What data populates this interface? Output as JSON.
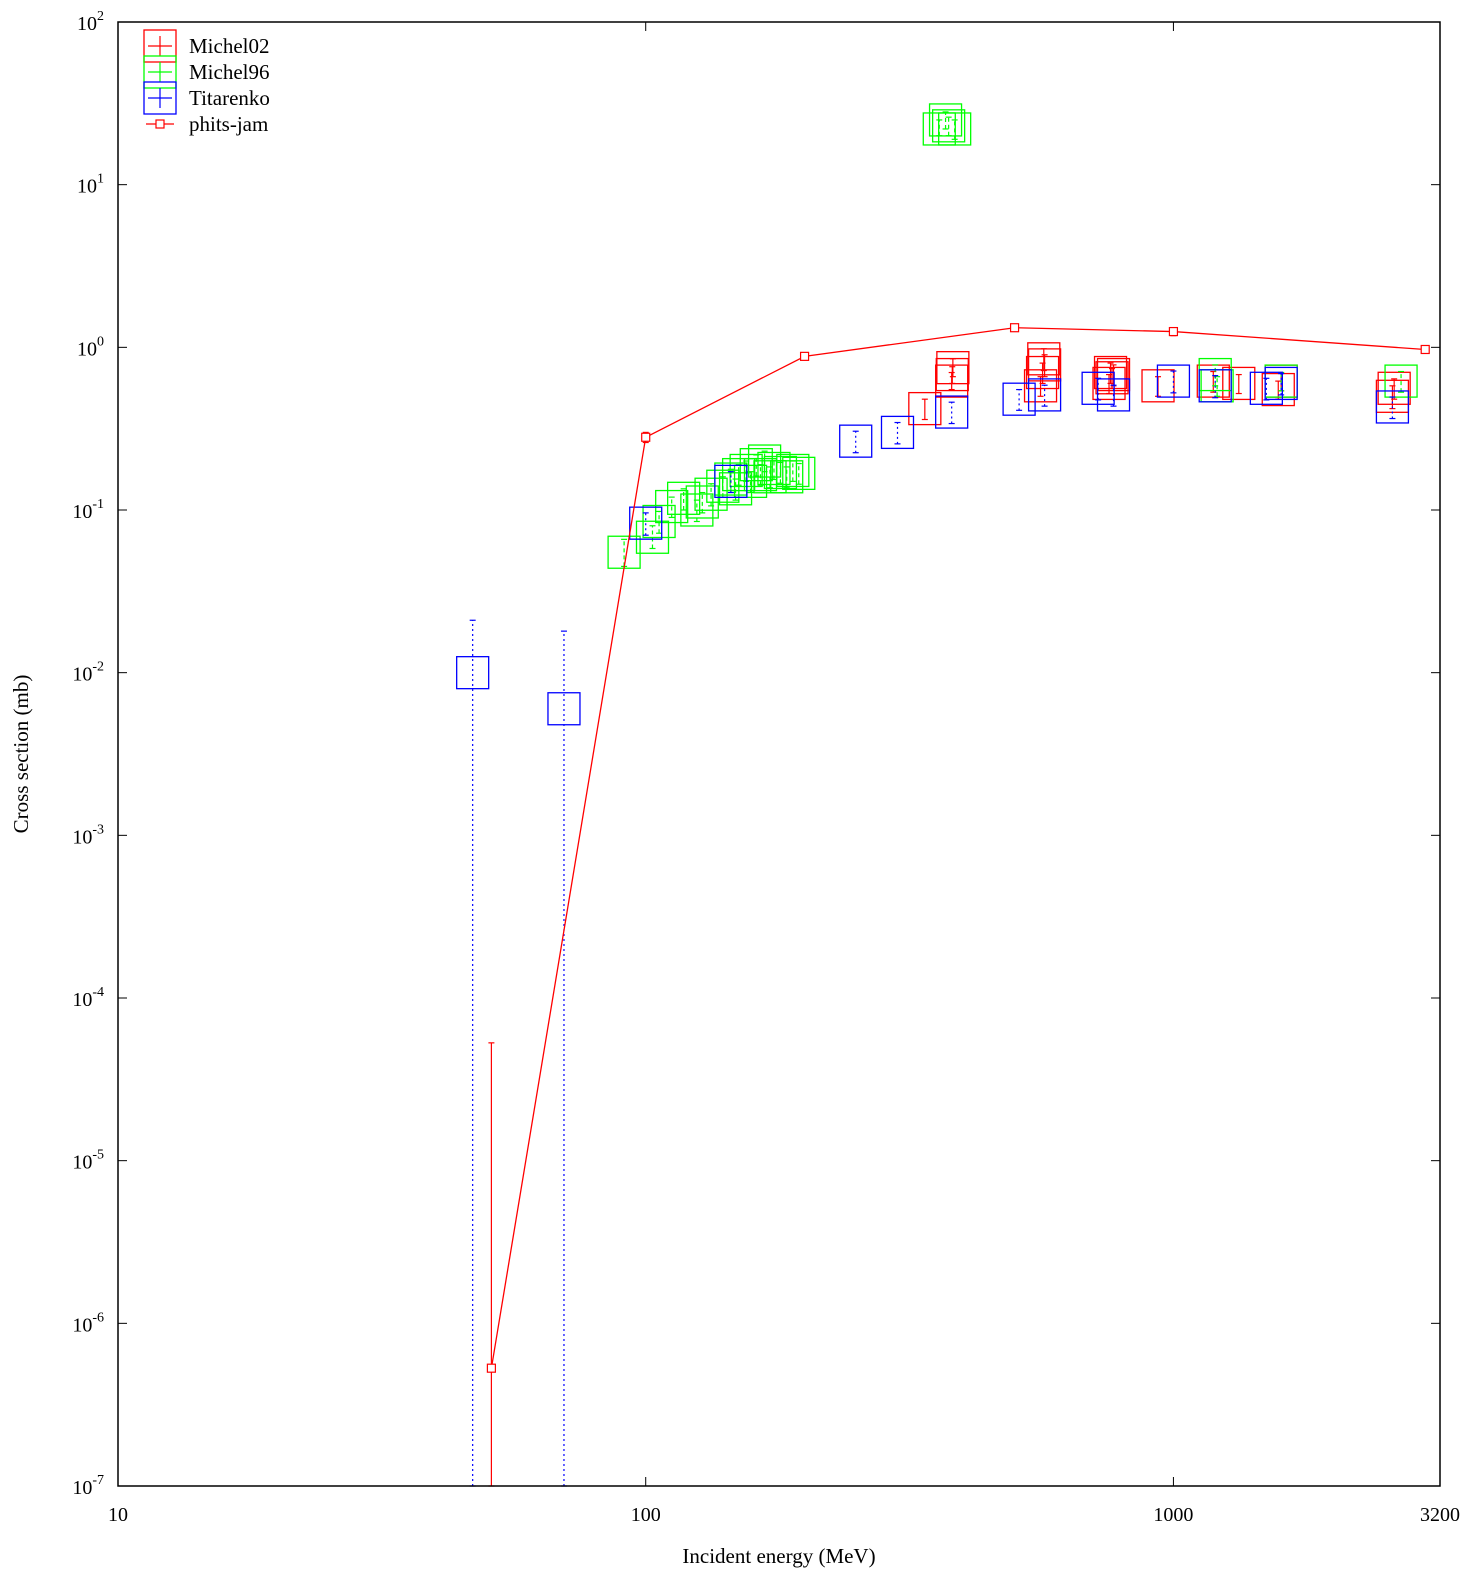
{
  "chart_data": {
    "type": "scatter",
    "title": "",
    "xlabel": "Incident energy (MeV)",
    "ylabel": "Cross section (mb)",
    "x_scale": "log",
    "y_scale": "log",
    "xlim": [
      10,
      3200
    ],
    "ylim": [
      1e-07,
      100
    ],
    "grid": false,
    "legend_position": "top-left",
    "x_ticks": [
      {
        "value": 10,
        "label": "10"
      },
      {
        "value": 100,
        "label": "100"
      },
      {
        "value": 1000,
        "label": "1000"
      },
      {
        "value": 3200,
        "label": "3200"
      }
    ],
    "y_ticks": [
      {
        "value": 1e-07,
        "base": "10",
        "exp": "-7"
      },
      {
        "value": 1e-06,
        "base": "10",
        "exp": "-6"
      },
      {
        "value": 1e-05,
        "base": "10",
        "exp": "-5"
      },
      {
        "value": 0.0001,
        "base": "10",
        "exp": "-4"
      },
      {
        "value": 0.001,
        "base": "10",
        "exp": "-3"
      },
      {
        "value": 0.01,
        "base": "10",
        "exp": "-2"
      },
      {
        "value": 0.1,
        "base": "10",
        "exp": "-1"
      },
      {
        "value": 1,
        "base": "10",
        "exp": "0"
      },
      {
        "value": 10,
        "base": "10",
        "exp": "1"
      },
      {
        "value": 100,
        "base": "10",
        "exp": "2"
      }
    ],
    "series": [
      {
        "name": "Michel02",
        "color": "#ff0000",
        "marker": "open-square",
        "points": [
          {
            "x": 338,
            "y": 0.42,
            "lo": 0.36,
            "hi": 0.48
          },
          {
            "x": 380,
            "y": 0.62,
            "lo": 0.55,
            "hi": 0.7
          },
          {
            "x": 382,
            "y": 0.75,
            "lo": 0.66,
            "hi": 0.85
          },
          {
            "x": 381,
            "y": 0.68,
            "lo": 0.6,
            "hi": 0.76
          },
          {
            "x": 560,
            "y": 0.58,
            "lo": 0.5,
            "hi": 0.66
          },
          {
            "x": 565,
            "y": 0.7,
            "lo": 0.6,
            "hi": 0.8
          },
          {
            "x": 568,
            "y": 0.85,
            "lo": 0.72,
            "hi": 0.98
          },
          {
            "x": 570,
            "y": 0.78,
            "lo": 0.66,
            "hi": 0.9
          },
          {
            "x": 755,
            "y": 0.6,
            "lo": 0.52,
            "hi": 0.68
          },
          {
            "x": 760,
            "y": 0.7,
            "lo": 0.6,
            "hi": 0.8
          },
          {
            "x": 765,
            "y": 0.65,
            "lo": 0.56,
            "hi": 0.74
          },
          {
            "x": 770,
            "y": 0.68,
            "lo": 0.58,
            "hi": 0.78
          },
          {
            "x": 935,
            "y": 0.58,
            "lo": 0.5,
            "hi": 0.66
          },
          {
            "x": 1190,
            "y": 0.62,
            "lo": 0.53,
            "hi": 0.71
          },
          {
            "x": 1330,
            "y": 0.6,
            "lo": 0.52,
            "hi": 0.68
          },
          {
            "x": 1580,
            "y": 0.55,
            "lo": 0.48,
            "hi": 0.62
          },
          {
            "x": 1600,
            "y": 0.62,
            "lo": 0.54,
            "hi": 0.7
          },
          {
            "x": 2600,
            "y": 0.5,
            "lo": 0.42,
            "hi": 0.58
          },
          {
            "x": 2620,
            "y": 0.56,
            "lo": 0.48,
            "hi": 0.64
          }
        ]
      },
      {
        "name": "Michel96",
        "color": "#00ff00",
        "marker": "open-square",
        "points": [
          {
            "x": 91,
            "y": 0.055,
            "lo": 0.045,
            "hi": 0.066
          },
          {
            "x": 103,
            "y": 0.068,
            "lo": 0.058,
            "hi": 0.08
          },
          {
            "x": 106,
            "y": 0.085,
            "lo": 0.072,
            "hi": 0.098
          },
          {
            "x": 112,
            "y": 0.105,
            "lo": 0.09,
            "hi": 0.12
          },
          {
            "x": 118,
            "y": 0.118,
            "lo": 0.1,
            "hi": 0.135
          },
          {
            "x": 125,
            "y": 0.1,
            "lo": 0.085,
            "hi": 0.115
          },
          {
            "x": 128,
            "y": 0.112,
            "lo": 0.096,
            "hi": 0.128
          },
          {
            "x": 133,
            "y": 0.125,
            "lo": 0.106,
            "hi": 0.145
          },
          {
            "x": 140,
            "y": 0.14,
            "lo": 0.12,
            "hi": 0.16
          },
          {
            "x": 145,
            "y": 0.155,
            "lo": 0.132,
            "hi": 0.178
          },
          {
            "x": 148,
            "y": 0.135,
            "lo": 0.115,
            "hi": 0.155
          },
          {
            "x": 150,
            "y": 0.165,
            "lo": 0.142,
            "hi": 0.19
          },
          {
            "x": 155,
            "y": 0.175,
            "lo": 0.15,
            "hi": 0.2
          },
          {
            "x": 158,
            "y": 0.15,
            "lo": 0.128,
            "hi": 0.172
          },
          {
            "x": 162,
            "y": 0.19,
            "lo": 0.162,
            "hi": 0.218
          },
          {
            "x": 165,
            "y": 0.165,
            "lo": 0.142,
            "hi": 0.19
          },
          {
            "x": 168,
            "y": 0.2,
            "lo": 0.172,
            "hi": 0.23
          },
          {
            "x": 172,
            "y": 0.16,
            "lo": 0.137,
            "hi": 0.184
          },
          {
            "x": 175,
            "y": 0.18,
            "lo": 0.154,
            "hi": 0.207
          },
          {
            "x": 180,
            "y": 0.17,
            "lo": 0.146,
            "hi": 0.196
          },
          {
            "x": 185,
            "y": 0.16,
            "lo": 0.137,
            "hi": 0.184
          },
          {
            "x": 190,
            "y": 0.175,
            "lo": 0.15,
            "hi": 0.2
          },
          {
            "x": 195,
            "y": 0.168,
            "lo": 0.144,
            "hi": 0.193
          },
          {
            "x": 360,
            "y": 22,
            "lo": 20,
            "hi": 25
          },
          {
            "x": 370,
            "y": 25,
            "lo": 22,
            "hi": 28
          },
          {
            "x": 375,
            "y": 23,
            "lo": 20,
            "hi": 26
          },
          {
            "x": 385,
            "y": 22,
            "lo": 19,
            "hi": 25
          },
          {
            "x": 1200,
            "y": 0.68,
            "lo": 0.58,
            "hi": 0.78
          },
          {
            "x": 1210,
            "y": 0.58,
            "lo": 0.5,
            "hi": 0.66
          },
          {
            "x": 1600,
            "y": 0.62,
            "lo": 0.54,
            "hi": 0.7
          },
          {
            "x": 2700,
            "y": 0.62,
            "lo": 0.53,
            "hi": 0.71
          }
        ]
      },
      {
        "name": "Titarenko",
        "color": "#0000ff",
        "marker": "open-square",
        "points": [
          {
            "x": 47,
            "y": 0.01,
            "lo": 1e-07,
            "hi": 0.021
          },
          {
            "x": 70,
            "y": 0.006,
            "lo": 1e-07,
            "hi": 0.018
          },
          {
            "x": 100,
            "y": 0.083,
            "lo": 0.07,
            "hi": 0.096
          },
          {
            "x": 145,
            "y": 0.15,
            "lo": 0.128,
            "hi": 0.172
          },
          {
            "x": 250,
            "y": 0.265,
            "lo": 0.225,
            "hi": 0.305
          },
          {
            "x": 300,
            "y": 0.3,
            "lo": 0.255,
            "hi": 0.345
          },
          {
            "x": 380,
            "y": 0.4,
            "lo": 0.34,
            "hi": 0.46
          },
          {
            "x": 510,
            "y": 0.48,
            "lo": 0.41,
            "hi": 0.55
          },
          {
            "x": 570,
            "y": 0.51,
            "lo": 0.435,
            "hi": 0.585
          },
          {
            "x": 720,
            "y": 0.56,
            "lo": 0.475,
            "hi": 0.645
          },
          {
            "x": 770,
            "y": 0.51,
            "lo": 0.435,
            "hi": 0.585
          },
          {
            "x": 1000,
            "y": 0.62,
            "lo": 0.525,
            "hi": 0.715
          },
          {
            "x": 1200,
            "y": 0.58,
            "lo": 0.49,
            "hi": 0.67
          },
          {
            "x": 1500,
            "y": 0.56,
            "lo": 0.475,
            "hi": 0.645
          },
          {
            "x": 1600,
            "y": 0.6,
            "lo": 0.51,
            "hi": 0.69
          },
          {
            "x": 2600,
            "y": 0.43,
            "lo": 0.365,
            "hi": 0.495
          }
        ]
      },
      {
        "name": "phits-jam",
        "color": "#ff0000",
        "marker": "small-square-line",
        "points": [
          {
            "x": 51,
            "y": 5.3e-07,
            "lo": 1e-07,
            "hi": 5.3e-05
          },
          {
            "x": 100,
            "y": 0.28,
            "lo": 0.26,
            "hi": 0.3
          },
          {
            "x": 200,
            "y": 0.88,
            "lo": 0.85,
            "hi": 0.91
          },
          {
            "x": 500,
            "y": 1.32,
            "lo": 1.28,
            "hi": 1.36
          },
          {
            "x": 1000,
            "y": 1.25,
            "lo": 1.18,
            "hi": 1.32
          },
          {
            "x": 3000,
            "y": 0.97,
            "lo": 0.92,
            "hi": 1.02
          }
        ]
      }
    ]
  }
}
